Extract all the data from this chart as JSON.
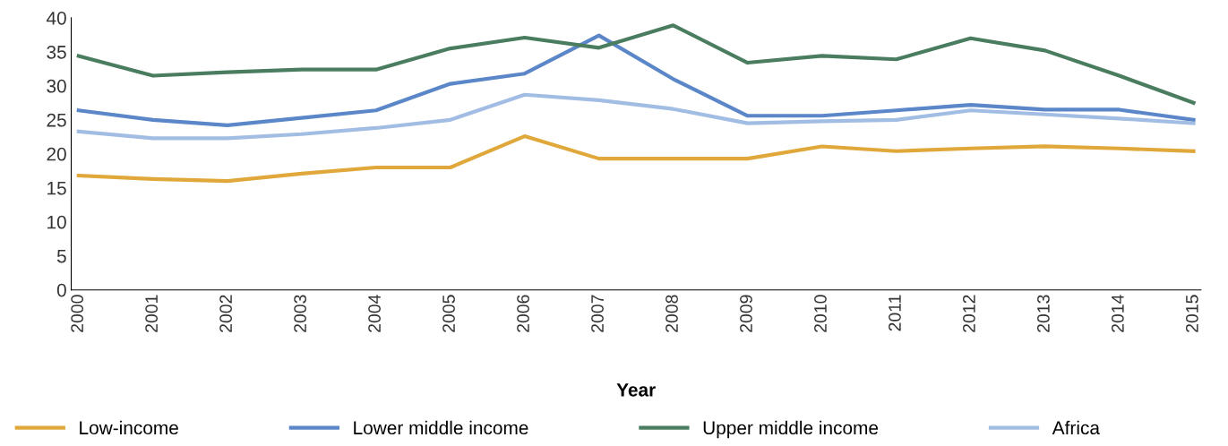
{
  "chart_data": {
    "type": "line",
    "xlabel": "Year",
    "categories": [
      "2000",
      "2001",
      "2002",
      "2003",
      "2004",
      "2005",
      "2006",
      "2007",
      "2008",
      "2009",
      "2010",
      "2011",
      "2012",
      "2013",
      "2014",
      "2015"
    ],
    "series": [
      {
        "name": "Low-income",
        "color": "#e0a83a",
        "values": [
          16.8,
          16.3,
          16.0,
          17.1,
          18.0,
          18.0,
          22.6,
          19.3,
          19.3,
          19.3,
          21.1,
          20.4,
          20.8,
          21.1,
          20.8,
          20.4
        ]
      },
      {
        "name": "Lower middle income",
        "color": "#5b87c9",
        "values": [
          26.4,
          25.0,
          24.2,
          25.3,
          26.4,
          30.3,
          31.8,
          37.4,
          31.0,
          25.6,
          25.6,
          26.4,
          27.2,
          26.5,
          26.5,
          25.0
        ]
      },
      {
        "name": "Upper middle income",
        "color": "#4a7c5f",
        "values": [
          34.4,
          31.5,
          32.0,
          32.4,
          32.4,
          35.5,
          37.1,
          35.6,
          38.9,
          33.4,
          34.4,
          33.9,
          37.0,
          35.2,
          31.5,
          27.5
        ]
      },
      {
        "name": "Africa",
        "color": "#a2bde3",
        "values": [
          23.3,
          22.3,
          22.3,
          22.9,
          23.8,
          25.0,
          28.7,
          27.9,
          26.6,
          24.5,
          24.8,
          25.0,
          26.4,
          25.8,
          25.2,
          24.5
        ]
      }
    ],
    "ylim": [
      0,
      40
    ],
    "yticks": [
      0,
      5,
      10,
      15,
      20,
      25,
      30,
      35,
      40
    ],
    "grid": false,
    "legend": "bottom",
    "marker": "none",
    "line_style": "solid"
  }
}
